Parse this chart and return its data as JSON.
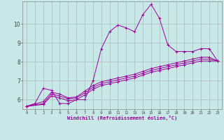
{
  "xlabel": "Windchill (Refroidissement éolien,°C)",
  "bg_color": "#c8e8e8",
  "line_color": "#990099",
  "xlim": [
    -0.5,
    23.5
  ],
  "ylim": [
    5.5,
    11.2
  ],
  "xticks": [
    0,
    1,
    2,
    3,
    4,
    5,
    6,
    7,
    8,
    9,
    10,
    11,
    12,
    13,
    14,
    15,
    16,
    17,
    18,
    19,
    20,
    21,
    22,
    23
  ],
  "yticks": [
    6,
    7,
    8,
    9,
    10
  ],
  "grid_color": "#aabbbb",
  "lines": [
    {
      "x": [
        0,
        1,
        2,
        3,
        4,
        5,
        6,
        7,
        8,
        9,
        10,
        11,
        12,
        13,
        14,
        15,
        16,
        17,
        18,
        19,
        20,
        21,
        22,
        23
      ],
      "y": [
        5.65,
        5.8,
        6.6,
        6.5,
        5.8,
        5.8,
        6.0,
        6.0,
        7.0,
        8.7,
        9.6,
        9.95,
        9.8,
        9.6,
        10.5,
        11.05,
        10.3,
        8.9,
        8.55,
        8.55,
        8.55,
        8.7,
        8.7,
        8.05
      ]
    },
    {
      "x": [
        0,
        2,
        3,
        4,
        5,
        6,
        7,
        8,
        9,
        10,
        11,
        12,
        13,
        14,
        15,
        16,
        17,
        18,
        19,
        20,
        21,
        22,
        23
      ],
      "y": [
        5.65,
        5.8,
        6.3,
        6.2,
        6.05,
        6.1,
        6.35,
        6.65,
        6.85,
        6.95,
        7.05,
        7.15,
        7.25,
        7.4,
        7.55,
        7.65,
        7.75,
        7.85,
        7.95,
        8.05,
        8.15,
        8.15,
        8.05
      ]
    },
    {
      "x": [
        0,
        2,
        3,
        4,
        5,
        6,
        7,
        8,
        9,
        10,
        11,
        12,
        13,
        14,
        15,
        16,
        17,
        18,
        19,
        20,
        21,
        22,
        23
      ],
      "y": [
        5.65,
        5.9,
        6.4,
        6.3,
        6.1,
        6.15,
        6.45,
        6.75,
        6.95,
        7.05,
        7.15,
        7.25,
        7.35,
        7.5,
        7.65,
        7.75,
        7.85,
        7.95,
        8.05,
        8.15,
        8.25,
        8.25,
        8.05
      ]
    },
    {
      "x": [
        0,
        2,
        3,
        4,
        5,
        6,
        7,
        8,
        9,
        10,
        11,
        12,
        13,
        14,
        15,
        16,
        17,
        18,
        19,
        20,
        21,
        22,
        23
      ],
      "y": [
        5.65,
        5.75,
        6.2,
        6.1,
        5.95,
        6.0,
        6.25,
        6.55,
        6.75,
        6.85,
        6.95,
        7.05,
        7.15,
        7.3,
        7.45,
        7.55,
        7.65,
        7.75,
        7.85,
        7.95,
        8.05,
        8.05,
        8.05
      ]
    }
  ]
}
